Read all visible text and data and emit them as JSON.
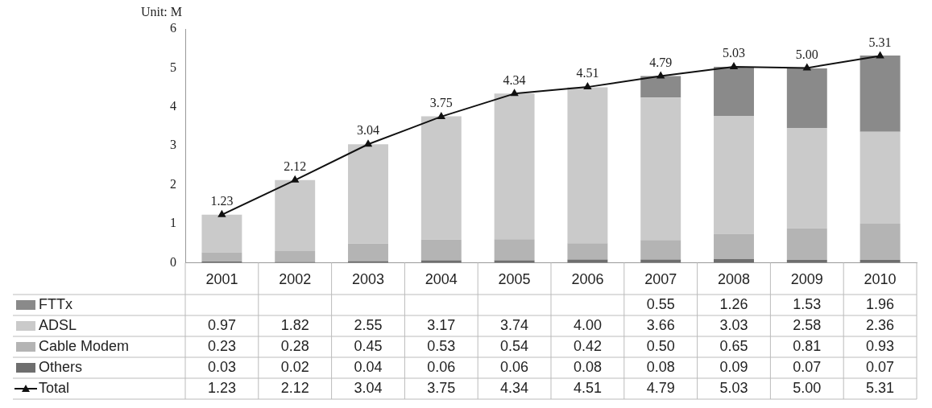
{
  "chart_data": {
    "type": "bar",
    "ylabel": "Unit: M",
    "stacked": true,
    "grid": false,
    "legend": "bottom left",
    "marker": "triangle",
    "ylim": [
      0,
      6
    ],
    "yticks": [
      0,
      1,
      2,
      3,
      4,
      5,
      6
    ],
    "categories": [
      "2001",
      "2002",
      "2003",
      "2004",
      "2005",
      "2006",
      "2007",
      "2008",
      "2009",
      "2010"
    ],
    "series": [
      {
        "name": "Others",
        "color": "#6e6e6e",
        "values": [
          0.03,
          0.02,
          0.04,
          0.06,
          0.06,
          0.08,
          0.08,
          0.09,
          0.07,
          0.07
        ],
        "value_labels": [
          "0.03",
          "0.02",
          "0.04",
          "0.06",
          "0.06",
          "0.08",
          "0.08",
          "0.09",
          "0.07",
          "0.07"
        ]
      },
      {
        "name": "Cable Modem",
        "color": "#b4b4b4",
        "values": [
          0.23,
          0.28,
          0.45,
          0.53,
          0.54,
          0.42,
          0.5,
          0.65,
          0.81,
          0.93
        ],
        "value_labels": [
          "0.23",
          "0.28",
          "0.45",
          "0.53",
          "0.54",
          "0.42",
          "0.50",
          "0.65",
          "0.81",
          "0.93"
        ]
      },
      {
        "name": "ADSL",
        "color": "#cacaca",
        "values": [
          0.97,
          1.82,
          2.55,
          3.17,
          3.74,
          4.0,
          3.66,
          3.03,
          2.58,
          2.36
        ],
        "value_labels": [
          "0.97",
          "1.82",
          "2.55",
          "3.17",
          "3.74",
          "4.00",
          "3.66",
          "3.03",
          "2.58",
          "2.36"
        ]
      },
      {
        "name": "FTTx",
        "color": "#8a8a8a",
        "values": [
          null,
          null,
          null,
          null,
          null,
          null,
          0.55,
          1.26,
          1.53,
          1.96
        ],
        "value_labels": [
          null,
          null,
          null,
          null,
          null,
          null,
          "0.55",
          "1.26",
          "1.53",
          "1.96"
        ]
      },
      {
        "name": "Total",
        "type": "line",
        "color": "#111111",
        "values": [
          1.23,
          2.12,
          3.04,
          3.75,
          4.34,
          4.51,
          4.79,
          5.03,
          5.0,
          5.31
        ],
        "value_labels": [
          "1.23",
          "2.12",
          "3.04",
          "3.75",
          "4.34",
          "4.51",
          "4.79",
          "5.03",
          "5.00",
          "5.31"
        ]
      }
    ]
  }
}
